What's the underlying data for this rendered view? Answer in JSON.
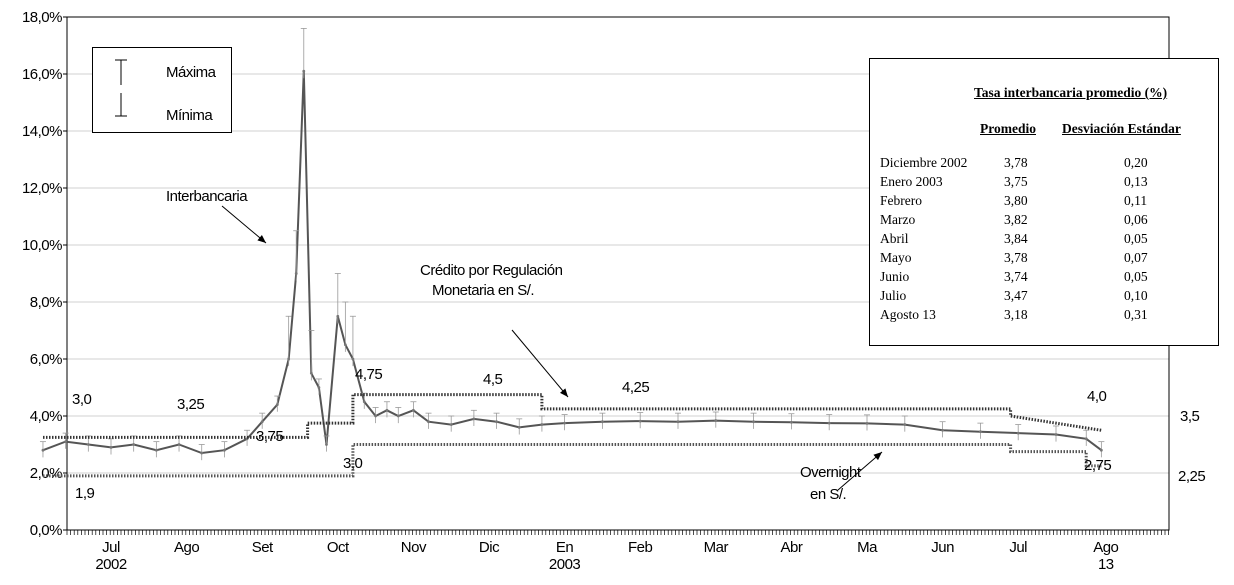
{
  "chart_data": {
    "type": "line",
    "title": "",
    "xlabel": "",
    "ylabel": "",
    "ylim": [
      0,
      18
    ],
    "y_tick_labels": [
      "0,0%",
      "2,0%",
      "4,0%",
      "6,0%",
      "8,0%",
      "10,0%",
      "12,0%",
      "14,0%",
      "16,0%",
      "18,0%"
    ],
    "x_tick_labels": [
      {
        "label": "Jul",
        "sub": "2002"
      },
      {
        "label": "Ago",
        "sub": ""
      },
      {
        "label": "Set",
        "sub": ""
      },
      {
        "label": "Oct",
        "sub": ""
      },
      {
        "label": "Nov",
        "sub": ""
      },
      {
        "label": "Dic",
        "sub": ""
      },
      {
        "label": "En",
        "sub": "2003"
      },
      {
        "label": "Feb",
        "sub": ""
      },
      {
        "label": "Mar",
        "sub": ""
      },
      {
        "label": "Abr",
        "sub": ""
      },
      {
        "label": "Ma",
        "sub": ""
      },
      {
        "label": "Jun",
        "sub": ""
      },
      {
        "label": "Jul",
        "sub": ""
      },
      {
        "label": "Ago",
        "sub": "13"
      }
    ],
    "month_index_note": "x values are month positions: 0 = Jul 2002 ... 13 = Ago 2003",
    "series": [
      {
        "name": "Interbancaria",
        "x": [
          -0.9,
          -0.6,
          -0.3,
          0.0,
          0.3,
          0.6,
          0.9,
          1.2,
          1.5,
          1.8,
          2.0,
          2.2,
          2.35,
          2.45,
          2.55,
          2.65,
          2.75,
          2.85,
          3.0,
          3.1,
          3.2,
          3.35,
          3.5,
          3.65,
          3.8,
          4.0,
          4.2,
          4.5,
          4.8,
          5.1,
          5.4,
          5.7,
          6.0,
          6.5,
          7.0,
          7.5,
          8.0,
          8.5,
          9.0,
          9.5,
          10.0,
          10.5,
          11.0,
          11.5,
          12.0,
          12.5,
          12.9,
          13.1
        ],
        "values": [
          2.8,
          3.1,
          3.0,
          2.9,
          3.0,
          2.8,
          3.0,
          2.7,
          2.8,
          3.2,
          3.8,
          4.4,
          6.0,
          9.0,
          16.1,
          5.5,
          5.0,
          3.0,
          7.5,
          6.5,
          6.0,
          4.5,
          4.0,
          4.2,
          4.0,
          4.2,
          3.8,
          3.7,
          3.9,
          3.8,
          3.6,
          3.7,
          3.75,
          3.8,
          3.82,
          3.8,
          3.84,
          3.8,
          3.78,
          3.75,
          3.74,
          3.7,
          3.5,
          3.45,
          3.4,
          3.35,
          3.2,
          2.8
        ]
      },
      {
        "name": "Crédito por Regulación Monetaria en S/.",
        "x": [
          -0.9,
          2.6,
          2.6,
          3.2,
          3.2,
          5.7,
          5.7,
          11.9,
          11.9,
          13.1
        ],
        "values": [
          3.25,
          3.25,
          3.75,
          3.75,
          4.75,
          4.75,
          4.25,
          4.25,
          4.0,
          3.5
        ]
      },
      {
        "name": "Overnight en S/.",
        "x": [
          -0.9,
          3.2,
          3.2,
          11.9,
          11.9,
          12.9,
          12.9,
          13.1
        ],
        "values": [
          1.9,
          1.9,
          3.0,
          3.0,
          2.75,
          2.75,
          2.25,
          2.25
        ]
      }
    ]
  },
  "annotations": {
    "interbancaria": "Interbancaria",
    "credito_line1": "Crédito por Regulación",
    "credito_line2": "Monetaria en S/.",
    "overnight_line1": "Overnight",
    "overnight_line2": "en S/.",
    "labels": [
      "3,0",
      "3,25",
      "3,75",
      "4,75",
      "4,5",
      "4,25",
      "4,0",
      "3,5",
      "3,0",
      "1,9",
      "2,75",
      "2,25"
    ]
  },
  "legend": {
    "maxima": "Máxima",
    "minima": "Mínima"
  },
  "table": {
    "title": "Tasa interbancaria promedio (%)",
    "col_promedio": "Promedio",
    "col_desv": "Desviación Estándar",
    "rows": [
      {
        "month": "Diciembre 2002",
        "avg": "3,78",
        "sd": "0,20"
      },
      {
        "month": "Enero 2003",
        "avg": "3,75",
        "sd": "0,13"
      },
      {
        "month": "Febrero",
        "avg": "3,80",
        "sd": "0,11"
      },
      {
        "month": "Marzo",
        "avg": "3,82",
        "sd": "0,06"
      },
      {
        "month": "Abril",
        "avg": "3,84",
        "sd": "0,05"
      },
      {
        "month": "Mayo",
        "avg": "3,78",
        "sd": "0,07"
      },
      {
        "month": "Junio",
        "avg": "3,74",
        "sd": "0,05"
      },
      {
        "month": "Julio",
        "avg": "3,47",
        "sd": "0,10"
      },
      {
        "month": "Agosto 13",
        "avg": "3,18",
        "sd": "0,31"
      }
    ]
  }
}
